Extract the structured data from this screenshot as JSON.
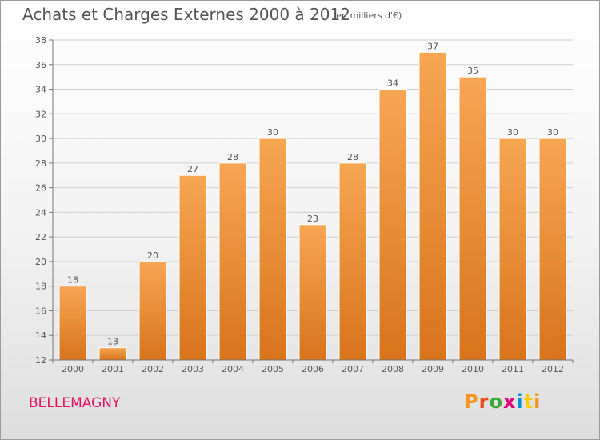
{
  "header": {
    "title": "Achats et Charges Externes 2000 à 2012",
    "unit": "(en milliers d'€)"
  },
  "footer": {
    "commune": "BELLEMAGNY",
    "commune_color": "#e0115f",
    "logo_text": "Proxiti",
    "logo_colors": [
      "#f7941d",
      "#e94e1b",
      "#3aa935",
      "#e2007a",
      "#0090d4",
      "#ffcc00",
      "#f7941d"
    ]
  },
  "chart_data": {
    "type": "bar",
    "title": "Achats et Charges Externes 2000 à 2012",
    "subtitle": "(en milliers d'€)",
    "categories": [
      "2000",
      "2001",
      "2002",
      "2003",
      "2004",
      "2005",
      "2006",
      "2007",
      "2008",
      "2009",
      "2010",
      "2011",
      "2012"
    ],
    "values": [
      18,
      13,
      20,
      27,
      28,
      30,
      23,
      28,
      34,
      37,
      35,
      30,
      30
    ],
    "ylim": [
      12,
      38
    ],
    "yticks": [
      12,
      14,
      16,
      18,
      20,
      22,
      24,
      26,
      28,
      30,
      32,
      34,
      36,
      38
    ],
    "grid": true,
    "bar_color_top": "#f7a654",
    "bar_color_bottom": "#d8741c"
  }
}
